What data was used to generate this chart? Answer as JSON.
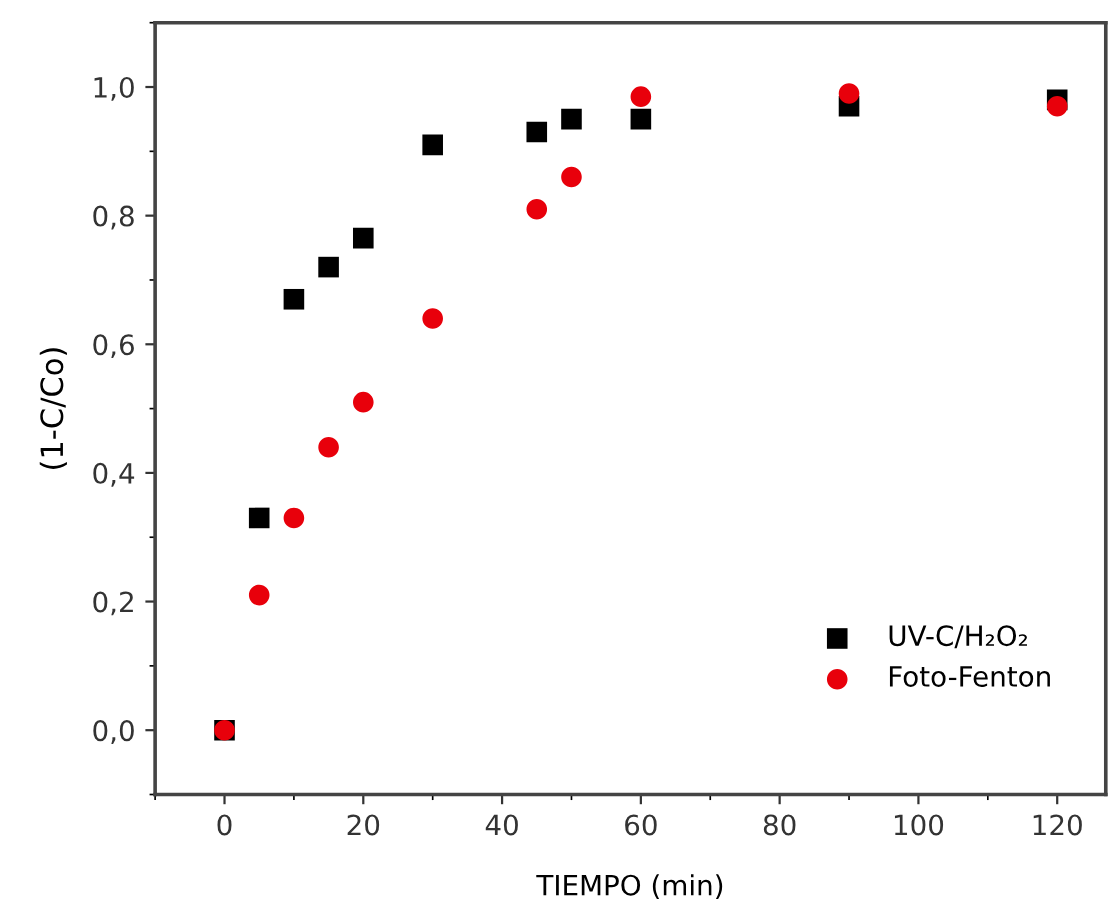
{
  "chart_data": {
    "type": "scatter",
    "xlabel": "TIEMPO (min)",
    "ylabel": "(1-C/Co)",
    "x": [
      0,
      5,
      10,
      15,
      20,
      30,
      45,
      50,
      60,
      90,
      120
    ],
    "series": [
      {
        "name": "UV-C/H₂O₂",
        "color": "#000000",
        "marker": "square",
        "values": [
          0,
          0.33,
          0.67,
          0.72,
          0.765,
          0.91,
          0.93,
          0.95,
          0.95,
          0.97,
          0.98
        ]
      },
      {
        "name": "Foto-Fenton",
        "color": "#e8000b",
        "marker": "circle",
        "values": [
          0,
          0.21,
          0.33,
          0.44,
          0.51,
          0.64,
          0.81,
          0.86,
          0.985,
          0.99,
          0.97
        ]
      }
    ],
    "xlim": [
      -10,
      127
    ],
    "ylim": [
      -0.1,
      1.1
    ],
    "xticks": [
      0,
      20,
      40,
      60,
      80,
      100,
      120
    ],
    "yticks": [
      {
        "value": 0,
        "label": "0,0"
      },
      {
        "value": 0.2,
        "label": "0,2"
      },
      {
        "value": 0.4,
        "label": "0,4"
      },
      {
        "value": 0.6,
        "label": "0,6"
      },
      {
        "value": 0.8,
        "label": "0,8"
      },
      {
        "value": 1.0,
        "label": "1,0"
      }
    ],
    "grid": false,
    "legend": "bottom right"
  }
}
